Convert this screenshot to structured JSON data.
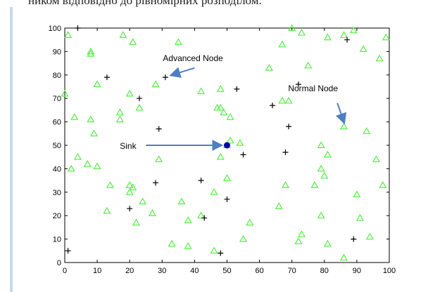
{
  "caption": "ником відповідно до рівномірних розподілом.",
  "chart_data": {
    "type": "scatter",
    "title": "",
    "xlabel": "",
    "ylabel": "",
    "xlim": [
      0,
      100
    ],
    "ylim": [
      0,
      100
    ],
    "xticks": [
      "0",
      "10",
      "20",
      "30",
      "40",
      "50",
      "60",
      "70",
      "80",
      "90",
      "100"
    ],
    "yticks": [
      "0",
      "10",
      "20",
      "30",
      "40",
      "50",
      "60",
      "70",
      "80",
      "90",
      "100"
    ],
    "grid": false,
    "colors": {
      "normal": "#55ee44",
      "advanced": "#000000",
      "sink": "#0000aa",
      "arrow": "#4f7fc0"
    },
    "series": [
      {
        "marker": "triangle",
        "points": [
          [
            1,
            97
          ],
          [
            8,
            89
          ],
          [
            8,
            90
          ],
          [
            10,
            76
          ],
          [
            18,
            97
          ],
          [
            21,
            94
          ],
          [
            0,
            72
          ],
          [
            3,
            62
          ],
          [
            8,
            61
          ],
          [
            9,
            55
          ],
          [
            17,
            64
          ],
          [
            17,
            61
          ],
          [
            20,
            72
          ],
          [
            23,
            66
          ],
          [
            28,
            76
          ],
          [
            35,
            94
          ],
          [
            42,
            73
          ],
          [
            47,
            66
          ],
          [
            48,
            74
          ],
          [
            48,
            66
          ],
          [
            49,
            64
          ],
          [
            51,
            62
          ],
          [
            48,
            45
          ],
          [
            50,
            50
          ],
          [
            51,
            52
          ],
          [
            54,
            51
          ],
          [
            29,
            44
          ],
          [
            2,
            40
          ],
          [
            4,
            45
          ],
          [
            7,
            42
          ],
          [
            10,
            41
          ],
          [
            14,
            33
          ],
          [
            20,
            30
          ],
          [
            20,
            33
          ],
          [
            21,
            32
          ],
          [
            13,
            22
          ],
          [
            24,
            26
          ],
          [
            22,
            17
          ],
          [
            27,
            21
          ],
          [
            36,
            26
          ],
          [
            38,
            18
          ],
          [
            46,
            30
          ],
          [
            42,
            20
          ],
          [
            33,
            8
          ],
          [
            38,
            7
          ],
          [
            46,
            5
          ],
          [
            50,
            36
          ],
          [
            55,
            10
          ],
          [
            57,
            17
          ],
          [
            63,
            83
          ],
          [
            67,
            93
          ],
          [
            70,
            100
          ],
          [
            73,
            98
          ],
          [
            75,
            84
          ],
          [
            69,
            69
          ],
          [
            67,
            69
          ],
          [
            77,
            33
          ],
          [
            81,
            46
          ],
          [
            79,
            40
          ],
          [
            80,
            37
          ],
          [
            86,
            58
          ],
          [
            93,
            56
          ],
          [
            79,
            50
          ],
          [
            79,
            20
          ],
          [
            66,
            24
          ],
          [
            68,
            33
          ],
          [
            72,
            9
          ],
          [
            73,
            12
          ],
          [
            81,
            8
          ],
          [
            86,
            2
          ],
          [
            90,
            29
          ],
          [
            91,
            19
          ],
          [
            94,
            11
          ],
          [
            96,
            44
          ],
          [
            98,
            33
          ],
          [
            97,
            87
          ],
          [
            99,
            96
          ],
          [
            89,
            99
          ],
          [
            86,
            97
          ],
          [
            81,
            96
          ],
          [
            92,
            91
          ]
        ]
      },
      {
        "marker": "plus",
        "points": [
          [
            4,
            100
          ],
          [
            13,
            79
          ],
          [
            31,
            79
          ],
          [
            23,
            70
          ],
          [
            29,
            57
          ],
          [
            53,
            74
          ],
          [
            64,
            67
          ],
          [
            72,
            76
          ],
          [
            69,
            58
          ],
          [
            68,
            47
          ],
          [
            55,
            46
          ],
          [
            28,
            34
          ],
          [
            42,
            35
          ],
          [
            50,
            27
          ],
          [
            20,
            23
          ],
          [
            43,
            19
          ],
          [
            48,
            4
          ],
          [
            1,
            5
          ],
          [
            89,
            10
          ],
          [
            87,
            95
          ]
        ]
      },
      {
        "marker": "dot",
        "points": [
          [
            50,
            50
          ]
        ]
      }
    ],
    "annotations": [
      {
        "text": "Advanced Node",
        "text_at": [
          39.5,
          86
        ],
        "arrow_from": [
          40,
          83
        ],
        "arrow_to": [
          33,
          80
        ]
      },
      {
        "text": "Normal Node",
        "text_at": [
          76.5,
          73
        ],
        "arrow_from": [
          84,
          68
        ],
        "arrow_to": [
          86,
          60
        ]
      },
      {
        "text": "Sink",
        "text_at": [
          19.5,
          48.5
        ],
        "arrow_from": [
          25,
          50
        ],
        "arrow_to": [
          48,
          50
        ]
      }
    ]
  }
}
